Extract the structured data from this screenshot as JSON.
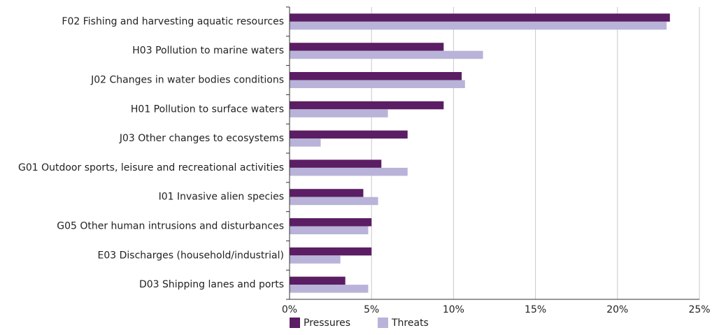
{
  "chart_data": {
    "type": "bar",
    "orientation": "horizontal",
    "categories": [
      "F02 Fishing and harvesting aquatic resources",
      "H03 Pollution to marine waters",
      "J02 Changes in water bodies conditions",
      "H01 Pollution to surface waters",
      "J03 Other changes to ecosystems",
      "G01 Outdoor sports, leisure and recreational activities",
      "I01 Invasive alien species",
      "G05 Other human intrusions and disturbances",
      "E03 Discharges (household/industrial)",
      "D03 Shipping lanes and ports"
    ],
    "series": [
      {
        "name": "Pressures",
        "color": "#5b1d63",
        "values": [
          23.2,
          9.4,
          10.5,
          9.4,
          7.2,
          5.6,
          4.5,
          5.0,
          5.0,
          3.4
        ]
      },
      {
        "name": "Threats",
        "color": "#b9b3d9",
        "values": [
          23.0,
          11.8,
          10.7,
          6.0,
          1.9,
          7.2,
          5.4,
          4.8,
          3.1,
          4.8
        ]
      }
    ],
    "xlim": [
      0,
      25
    ],
    "x_ticks": [
      "0%",
      "5%",
      "10%",
      "15%",
      "20%",
      "25%"
    ],
    "x_tick_values": [
      0,
      5,
      10,
      15,
      20,
      25
    ],
    "grid": "vertical",
    "legend": "bottom-center"
  }
}
